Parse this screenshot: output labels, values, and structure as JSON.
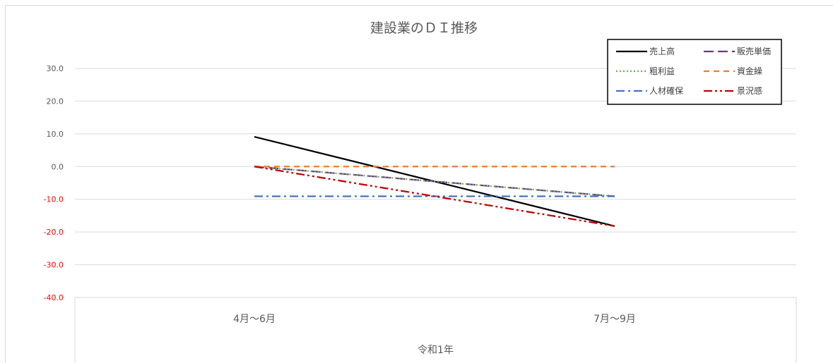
{
  "chart_data": {
    "type": "line",
    "title": "建設業のＤＩ推移",
    "categories": [
      "4月～6月",
      "7月～9月"
    ],
    "group_label": "令和1年",
    "ylim": [
      -40,
      30
    ],
    "y_ticks": [
      "30.0",
      "20.0",
      "10.0",
      "0.0",
      "-10.0",
      "-20.0",
      "-30.0",
      "-40.0"
    ],
    "negative_tick_color": "#ff0000",
    "grid": true,
    "legend_position": "top-right",
    "series": [
      {
        "name": "売上高",
        "values": [
          9.1,
          -18.2
        ],
        "color": "#000000",
        "dash": "solid"
      },
      {
        "name": "販売単価",
        "values": [
          0.0,
          -9.1
        ],
        "color": "#7030a0",
        "dash": "long-dash"
      },
      {
        "name": "粗利益",
        "values": [
          0.0,
          -9.1
        ],
        "color": "#70ad47",
        "dash": "dot"
      },
      {
        "name": "資金繰",
        "values": [
          0.0,
          0.0
        ],
        "color": "#ed7d31",
        "dash": "dash"
      },
      {
        "name": "人材確保",
        "values": [
          -9.1,
          -9.1
        ],
        "color": "#4472c4",
        "dash": "dash-dot"
      },
      {
        "name": "景況感",
        "values": [
          0.0,
          -18.2
        ],
        "color": "#c00000",
        "dash": "dash-dot-dot"
      }
    ]
  }
}
